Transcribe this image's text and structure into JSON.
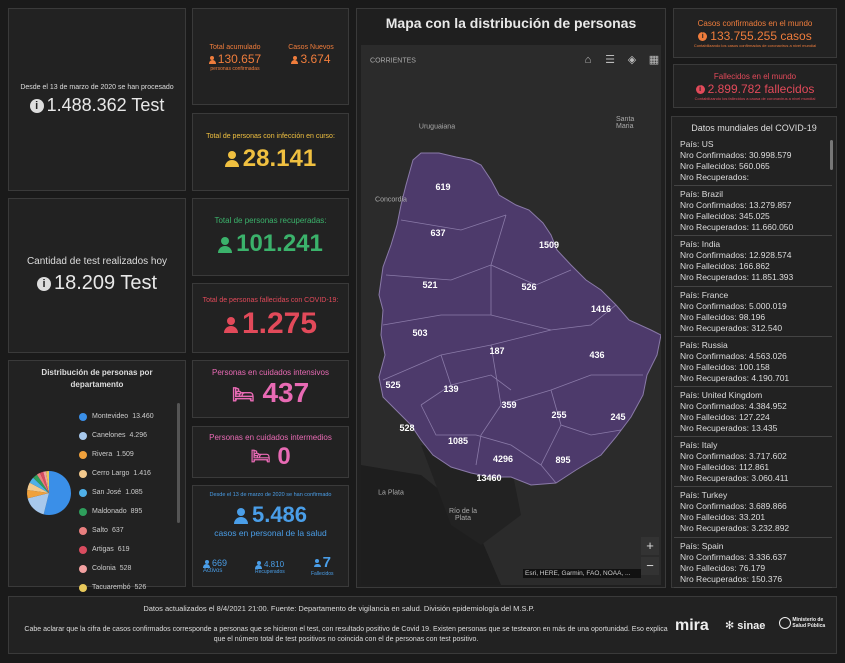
{
  "tests_total": {
    "caption": "Desde el 13 de marzo de 2020 se han procesado",
    "value": "1.488.362 Test"
  },
  "tests_today": {
    "caption": "Cantidad de test realizados hoy",
    "value": "18.209 Test"
  },
  "total_accumulated": {
    "label": "Total acumulado",
    "value": "130.657",
    "sub": "personas confirmadas"
  },
  "new_cases": {
    "label": "Casos Nuevos",
    "value": "3.674"
  },
  "active": {
    "label": "Total de personas con infección en curso:",
    "value": "28.141"
  },
  "recovered": {
    "label": "Total de personas recuperadas:",
    "value": "101.241"
  },
  "deaths": {
    "label": "Total de personas fallecidas con COVID-19:",
    "value": "1.275"
  },
  "intensive_care": {
    "label": "Personas en cuidados intensivos",
    "value": "437"
  },
  "intermediate_care": {
    "label": "Personas en cuidados intermedios",
    "value": "0"
  },
  "health_staff": {
    "caption": "Desde el 13 de marzo de 2020 se han confirmado",
    "value": "5.486",
    "sub": "casos en personal de la salud",
    "active_value": "669",
    "active_label": "Activos",
    "recovered_value": "4.810",
    "recovered_label": "Recuperados",
    "deaths_value": "7",
    "deaths_label": "Fallecidos"
  },
  "distribution": {
    "title": "Distribución de personas por departamento",
    "items": [
      {
        "name": "Montevideo",
        "value": "13.460",
        "color": "#3a8fe8"
      },
      {
        "name": "Canelones",
        "value": "4.296",
        "color": "#a7c8ec"
      },
      {
        "name": "Rivera",
        "value": "1.509",
        "color": "#f0a13c"
      },
      {
        "name": "Cerro Largo",
        "value": "1.416",
        "color": "#f3c98d"
      },
      {
        "name": "San José",
        "value": "1.085",
        "color": "#4fb0e8"
      },
      {
        "name": "Maldonado",
        "value": "895",
        "color": "#2e9e5b"
      },
      {
        "name": "Salto",
        "value": "637",
        "color": "#e97f7f"
      },
      {
        "name": "Artigas",
        "value": "619",
        "color": "#d94c5f"
      },
      {
        "name": "Colonia",
        "value": "528",
        "color": "#f2a0a0"
      },
      {
        "name": "Tacuarembó",
        "value": "526",
        "color": "#e8c85a"
      }
    ]
  },
  "map": {
    "title": "Mapa con la distribución de personas",
    "attribution": "Esri, HERE, Garmin, FAO, NOAA, ...",
    "zoom_in": "+",
    "zoom_out": "−",
    "places": [
      "CORRIENTES",
      "Uruguaiana",
      "Santa Maria",
      "Concordia",
      "La Plata",
      "Río de la Plata"
    ],
    "dept_values": [
      "619",
      "637",
      "1509",
      "521",
      "526",
      "1416",
      "503",
      "187",
      "436",
      "525",
      "139",
      "359",
      "255",
      "245",
      "528",
      "1085",
      "4296",
      "895",
      "13460"
    ]
  },
  "world_confirmed": {
    "label": "Casos confirmados en el mundo",
    "value": "133.755.255 casos",
    "sub": "Contabilizando los casos confirmados de coronavirus a nivel mundial"
  },
  "world_deaths": {
    "label": "Fallecidos en el mundo",
    "value": "2.899.782 fallecidos",
    "sub": "Contabilizando los fallecidos a causa de coronavirus a nivel mundial"
  },
  "world_list": {
    "title": "Datos mundiales del COVID-19",
    "items": [
      {
        "pais": "País: US",
        "conf": "Nro Confirmados: 30.998.579",
        "fall": "Nro Fallecidos: 560.065",
        "rec": "Nro Recuperados:"
      },
      {
        "pais": "País: Brazil",
        "conf": "Nro Confirmados: 13.279.857",
        "fall": "Nro Fallecidos: 345.025",
        "rec": "Nro Recuperados: 11.660.050"
      },
      {
        "pais": "País: India",
        "conf": "Nro Confirmados: 12.928.574",
        "fall": "Nro Fallecidos: 166.862",
        "rec": "Nro Recuperados: 11.851.393"
      },
      {
        "pais": "País: France",
        "conf": "Nro Confirmados: 5.000.019",
        "fall": "Nro Fallecidos: 98.196",
        "rec": "Nro Recuperados: 312.540"
      },
      {
        "pais": "País: Russia",
        "conf": "Nro Confirmados: 4.563.026",
        "fall": "Nro Fallecidos: 100.158",
        "rec": "Nro Recuperados: 4.190.701"
      },
      {
        "pais": "País: United Kingdom",
        "conf": "Nro Confirmados: 4.384.952",
        "fall": "Nro Fallecidos: 127.224",
        "rec": "Nro Recuperados: 13.435"
      },
      {
        "pais": "País: Italy",
        "conf": "Nro Confirmados: 3.717.602",
        "fall": "Nro Fallecidos: 112.861",
        "rec": "Nro Recuperados: 3.060.411"
      },
      {
        "pais": "País: Turkey",
        "conf": "Nro Confirmados: 3.689.866",
        "fall": "Nro Fallecidos: 33.201",
        "rec": "Nro Recuperados: 3.232.892"
      },
      {
        "pais": "País: Spain",
        "conf": "Nro Confirmados: 3.336.637",
        "fall": "Nro Fallecidos: 76.179",
        "rec": "Nro Recuperados: 150.376"
      }
    ]
  },
  "footer": {
    "updated": "Datos actualizados el 8/4/2021 21:00. Fuente: Departamento de vigilancia en salud. División epidemiología del M.S.P.",
    "note": "Cabe aclarar que la cifra de casos confirmados corresponde a personas que se hicieron el test, con resultado positivo de Covid 19. Existen personas que se testearon en más de una oportunidad. Eso explica que el número total de test positivos no coincida con el de personas con test positivo.",
    "logo_mira": "mira",
    "logo_sinae": "sinae",
    "logo_msp": "Ministerio de Salud Pública"
  },
  "colors": {
    "orange": "#f07d3c",
    "yellow": "#f0c040",
    "green": "#3bb26b",
    "red": "#e24a5a",
    "pink": "#e86ab4",
    "blue": "#4a9ee8",
    "map_fill": "#4d3a6b"
  }
}
